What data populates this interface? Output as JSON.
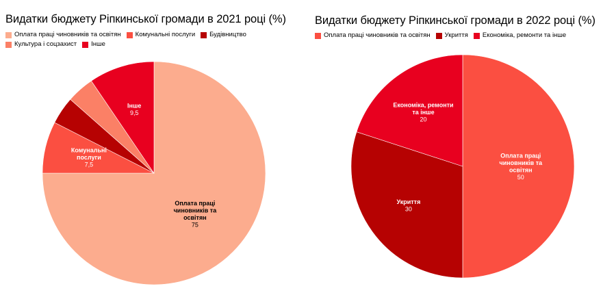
{
  "chart_data": [
    {
      "type": "pie",
      "title": "Видатки бюджету Ріпкинської громади в 2021 році (%)",
      "legend_position": "top",
      "slices": [
        {
          "label": "Оплата праці чиновників та освітян",
          "value": 75,
          "value_text": "75",
          "color": "#fcac8e",
          "label_lines": [
            "Оплата праці",
            "чиновників та",
            "освітян"
          ],
          "label_color": "dark"
        },
        {
          "label": "Комунальні послуги",
          "value": 7.5,
          "value_text": "7,5",
          "color": "#fb4f41",
          "label_lines": [
            "Комунальні",
            "послуги"
          ],
          "label_color": "light"
        },
        {
          "label": "Будівництво",
          "value": 4,
          "value_text": "",
          "color": "#b60202",
          "label_lines": [],
          "label_color": "light"
        },
        {
          "label": "Культура і соцзахист",
          "value": 4,
          "value_text": "",
          "color": "#fb8066",
          "label_lines": [],
          "label_color": "light"
        },
        {
          "label": "Інше",
          "value": 9.5,
          "value_text": "9,5",
          "color": "#e8001f",
          "label_lines": [
            "Інше"
          ],
          "label_color": "light"
        }
      ]
    },
    {
      "type": "pie",
      "title": "Видатки бюджету Ріпкинської громади в 2022 році (%)",
      "legend_position": "top",
      "slices": [
        {
          "label": "Оплата праці чиновників та освітян",
          "value": 50,
          "value_text": "50",
          "color": "#fb4f41",
          "label_lines": [
            "Оплата праці",
            "чиновників та",
            "освітян"
          ],
          "label_color": "light"
        },
        {
          "label": "Укриття",
          "value": 30,
          "value_text": "30",
          "color": "#b60202",
          "label_lines": [
            "Укриття"
          ],
          "label_color": "light"
        },
        {
          "label": "Економіка, ремонти та інше",
          "value": 20,
          "value_text": "20",
          "color": "#e8001f",
          "label_lines": [
            "Економіка, ремонти",
            "та інше"
          ],
          "label_color": "light"
        }
      ]
    }
  ]
}
